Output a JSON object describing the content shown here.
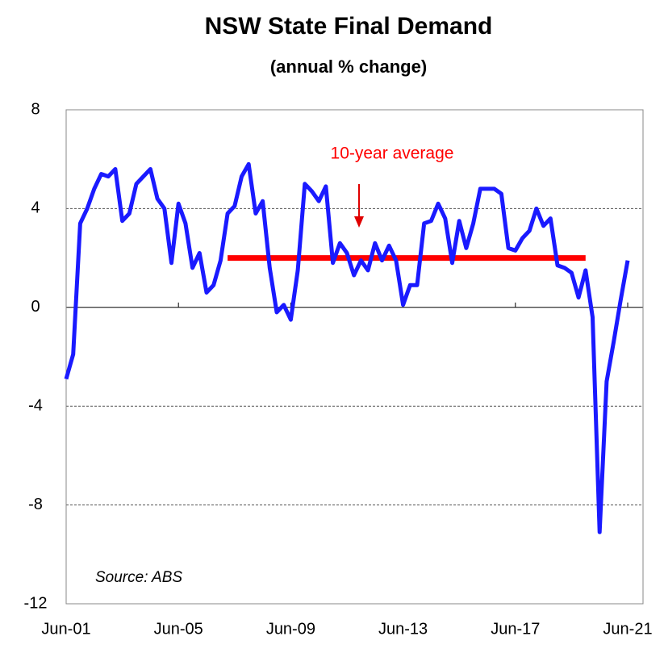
{
  "chart_data": {
    "type": "line",
    "title": "NSW State Final Demand",
    "subtitle": "(annual % change)",
    "annotation": "Source: ABS",
    "categories": [
      "Jun-01",
      null,
      null,
      null,
      null,
      null,
      null,
      null,
      null,
      null,
      null,
      null,
      null,
      null,
      null,
      null,
      "Jun-05",
      null,
      null,
      null,
      null,
      null,
      null,
      null,
      null,
      null,
      null,
      null,
      null,
      null,
      null,
      null,
      "Jun-09",
      null,
      null,
      null,
      null,
      null,
      null,
      null,
      null,
      null,
      null,
      null,
      null,
      null,
      null,
      null,
      "Jun-13",
      null,
      null,
      null,
      null,
      null,
      null,
      null,
      null,
      null,
      null,
      null,
      null,
      null,
      null,
      null,
      "Jun-17",
      null,
      null,
      null,
      null,
      null,
      null,
      null,
      null,
      null,
      null,
      null,
      null,
      null,
      null,
      null,
      "Jun-21"
    ],
    "series": [
      {
        "name": "NSW State Final Demand",
        "color": "#1a1aff",
        "values": [
          -2.9,
          -1.9,
          3.4,
          4.0,
          4.8,
          5.4,
          5.3,
          5.6,
          3.5,
          3.8,
          5.0,
          5.3,
          5.6,
          4.4,
          4.0,
          1.8,
          4.2,
          3.4,
          1.6,
          2.2,
          0.6,
          0.9,
          1.9,
          3.8,
          4.1,
          5.3,
          5.8,
          3.8,
          4.3,
          1.6,
          -0.2,
          0.1,
          -0.5,
          1.5,
          5.0,
          4.7,
          4.3,
          4.9,
          1.8,
          2.6,
          2.2,
          1.3,
          1.9,
          1.5,
          2.6,
          1.9,
          2.5,
          1.9,
          0.1,
          0.9,
          0.9,
          3.4,
          3.5,
          4.2,
          3.6,
          1.8,
          3.5,
          2.4,
          3.4,
          4.8,
          4.8,
          4.8,
          4.6,
          2.4,
          2.3,
          2.8,
          3.1,
          4.0,
          3.3,
          3.6,
          1.7,
          1.6,
          1.4,
          0.4,
          1.5,
          -0.4,
          -9.1,
          -3.0,
          -1.4,
          0.3,
          1.9
        ]
      },
      {
        "name": "10-year average",
        "color": "#ff0000",
        "values": [
          null,
          null,
          null,
          null,
          null,
          null,
          null,
          null,
          null,
          null,
          null,
          null,
          null,
          null,
          null,
          null,
          null,
          null,
          null,
          null,
          null,
          null,
          null,
          2.0,
          2.0,
          2.0,
          2.0,
          2.0,
          2.0,
          2.0,
          2.0,
          2.0,
          2.0,
          2.0,
          2.0,
          2.0,
          2.0,
          2.0,
          2.0,
          2.0,
          2.0,
          2.0,
          2.0,
          2.0,
          2.0,
          2.0,
          2.0,
          2.0,
          2.0,
          2.0,
          2.0,
          2.0,
          2.0,
          2.0,
          2.0,
          2.0,
          2.0,
          2.0,
          2.0,
          2.0,
          2.0,
          2.0,
          2.0,
          2.0,
          2.0,
          2.0,
          2.0,
          2.0,
          2.0,
          2.0,
          2.0,
          2.0,
          2.0,
          2.0,
          2.0,
          null,
          null,
          null,
          null,
          null,
          null
        ]
      }
    ],
    "ylim": [
      -12,
      8
    ],
    "yticks": [
      -12,
      -8,
      -4,
      0,
      4,
      8
    ],
    "grid": true
  }
}
